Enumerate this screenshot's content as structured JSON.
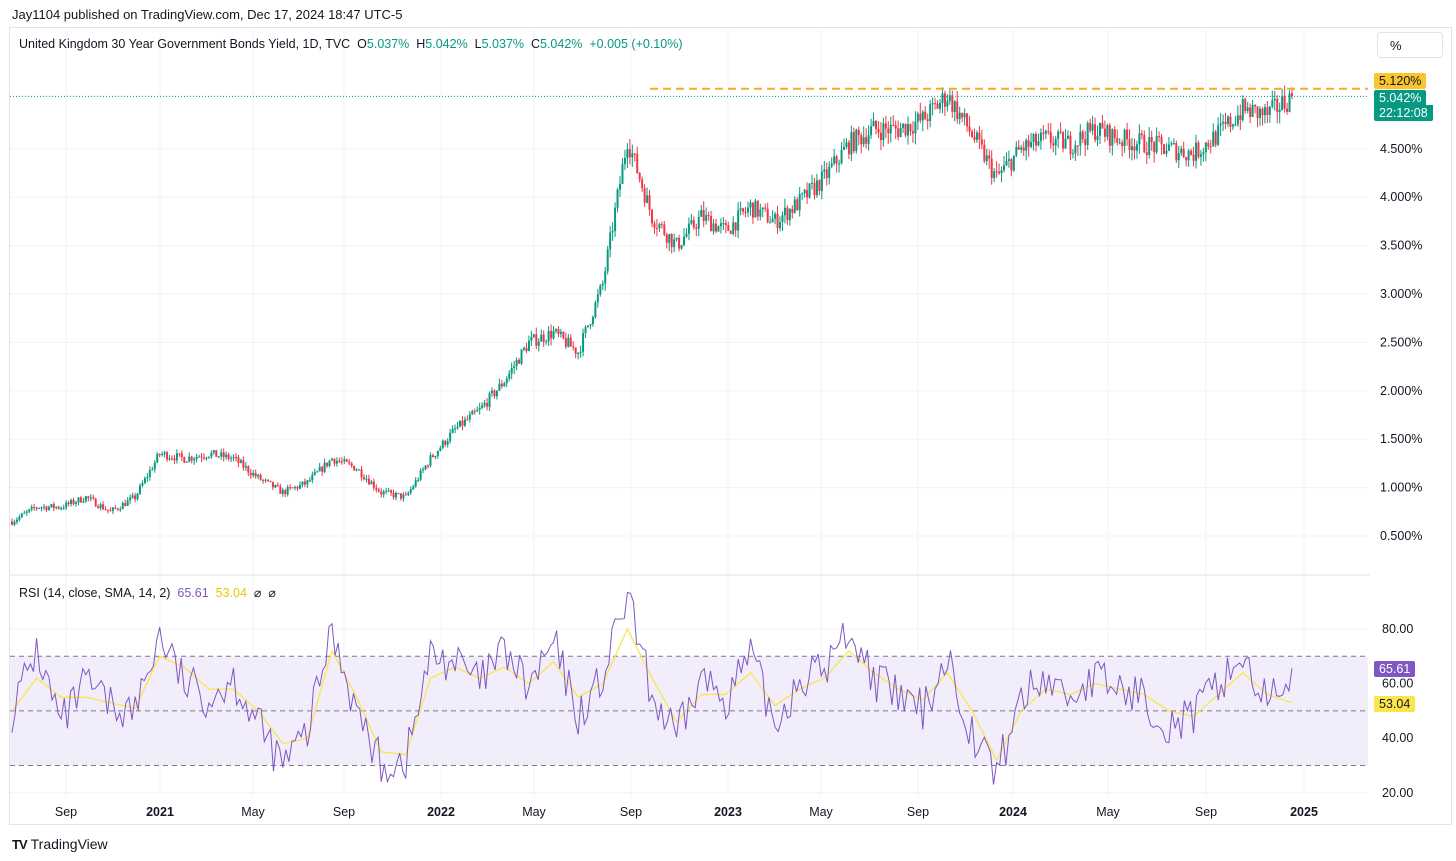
{
  "publisher": "Jay1104 published on TradingView.com, Dec 17, 2024 18:47 UTC-5",
  "legend": {
    "symbol": "United Kingdom 30 Year Government Bonds Yield, 1D, TVC",
    "open_label": "O",
    "open": "5.037%",
    "high_label": "H",
    "high": "5.042%",
    "low_label": "L",
    "low": "5.037%",
    "close_label": "C",
    "close": "5.042%",
    "change": "+0.005 (+0.10%)"
  },
  "unit_button": "%",
  "rsi_legend": {
    "label": "RSI (14, close, SMA, 14, 2)",
    "rsi_value": "65.61",
    "sma_value": "53.04",
    "extra1": "⌀",
    "extra2": "⌀"
  },
  "badges": {
    "resistance": "5.120%",
    "last_price": "5.042%",
    "countdown": "22:12:08",
    "rsi": "65.61",
    "rsi_sma": "53.04"
  },
  "footer": {
    "logo_mark": "TV",
    "brand": "TradingView"
  },
  "colors": {
    "up": "#089981",
    "down": "#f23645",
    "resistance": "#f9a825",
    "rsi_line": "#7e57c2",
    "rsi_sma": "#fbe64a",
    "band_fill": "#f1edfb"
  },
  "chart_data": [
    {
      "type": "candlestick",
      "title": "United Kingdom 30 Year Government Bonds Yield, 1D, TVC",
      "x_ticks": [
        "Sep",
        "2021",
        "May",
        "Sep",
        "2022",
        "May",
        "Sep",
        "2023",
        "May",
        "Sep",
        "2024",
        "May",
        "Sep",
        "2025"
      ],
      "y_ticks": [
        "0.500%",
        "1.000%",
        "1.500%",
        "2.000%",
        "2.500%",
        "3.000%",
        "3.500%",
        "4.000%",
        "4.500%"
      ],
      "ylim": [
        0.2,
        5.4
      ],
      "resistance_level": 5.12,
      "last_close": 5.042,
      "series": {
        "name": "yield",
        "dates": [
          "2020-08",
          "2020-09",
          "2020-10",
          "2020-11",
          "2020-12",
          "2021-01",
          "2021-02",
          "2021-03",
          "2021-04",
          "2021-05",
          "2021-06",
          "2021-07",
          "2021-08",
          "2021-09",
          "2021-10",
          "2021-11",
          "2021-12",
          "2022-01",
          "2022-02",
          "2022-03",
          "2022-04",
          "2022-05",
          "2022-06",
          "2022-07",
          "2022-08",
          "2022-09",
          "2022-10",
          "2022-11",
          "2022-12",
          "2023-01",
          "2023-02",
          "2023-03",
          "2023-04",
          "2023-05",
          "2023-06",
          "2023-07",
          "2023-08",
          "2023-09",
          "2023-10",
          "2023-11",
          "2023-12",
          "2024-01",
          "2024-02",
          "2024-03",
          "2024-04",
          "2024-05",
          "2024-06",
          "2024-07",
          "2024-08",
          "2024-09",
          "2024-10",
          "2024-11",
          "2024-12"
        ],
        "values": [
          0.65,
          0.8,
          0.8,
          0.9,
          0.75,
          0.9,
          1.35,
          1.3,
          1.35,
          1.3,
          1.1,
          0.95,
          1.05,
          1.3,
          1.2,
          0.95,
          0.9,
          1.3,
          1.6,
          1.8,
          2.1,
          2.5,
          2.6,
          2.4,
          3.1,
          4.6,
          3.8,
          3.5,
          3.8,
          3.65,
          3.9,
          3.75,
          3.95,
          4.2,
          4.55,
          4.7,
          4.7,
          4.8,
          5.05,
          4.65,
          4.2,
          4.5,
          4.6,
          4.55,
          4.7,
          4.6,
          4.55,
          4.5,
          4.45,
          4.65,
          4.9,
          4.85,
          5.04
        ]
      }
    },
    {
      "type": "line",
      "title": "RSI (14, close, SMA, 14, 2)",
      "y_ticks": [
        "20.00",
        "40.00",
        "60.00",
        "80.00"
      ],
      "ylim": [
        20,
        95
      ],
      "bands": [
        30,
        50,
        70
      ],
      "series": [
        {
          "name": "RSI",
          "values": [
            50,
            72,
            45,
            60,
            52,
            50,
            78,
            60,
            55,
            62,
            45,
            30,
            42,
            80,
            50,
            30,
            32,
            70,
            68,
            60,
            72,
            58,
            75,
            48,
            62,
            92,
            55,
            40,
            62,
            55,
            70,
            45,
            62,
            65,
            80,
            62,
            55,
            50,
            70,
            42,
            27,
            55,
            62,
            55,
            62,
            58,
            55,
            45,
            48,
            60,
            70,
            52,
            65.61
          ]
        },
        {
          "name": "RSI-based MA",
          "values": [
            50,
            62,
            55,
            55,
            53,
            51,
            70,
            66,
            58,
            58,
            50,
            38,
            40,
            72,
            55,
            35,
            34,
            62,
            66,
            62,
            66,
            60,
            68,
            55,
            60,
            80,
            62,
            46,
            56,
            56,
            64,
            52,
            58,
            62,
            72,
            64,
            58,
            54,
            64,
            50,
            32,
            50,
            58,
            56,
            60,
            58,
            56,
            50,
            48,
            56,
            64,
            56,
            53.04
          ]
        }
      ]
    }
  ]
}
